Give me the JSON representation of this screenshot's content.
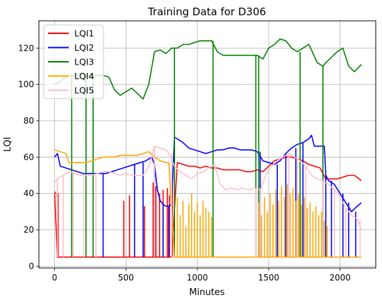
{
  "chart_data": {
    "type": "line",
    "title": "Training Data for D306",
    "xlabel": "Minutes",
    "ylabel": "LQI",
    "xlim": [
      -110,
      2250
    ],
    "ylim": [
      -1,
      135
    ],
    "xticks": [
      0,
      500,
      1000,
      1500,
      2000
    ],
    "yticks": [
      0,
      20,
      40,
      60,
      80,
      100,
      120
    ],
    "grid": true,
    "legend_position": "top-left",
    "series": [
      {
        "name": "LQI1",
        "color": "#ff0000",
        "x": [
          0,
          20,
          60,
          100,
          140,
          180,
          220,
          260,
          300,
          340,
          380,
          420,
          460,
          500,
          540,
          580,
          620,
          660,
          700,
          740,
          780,
          820,
          860,
          900,
          940,
          980,
          1020,
          1060,
          1100,
          1140,
          1180,
          1220,
          1260,
          1300,
          1340,
          1380,
          1420,
          1460,
          1500,
          1540,
          1580,
          1620,
          1660,
          1700,
          1740,
          1780,
          1820,
          1860,
          1900,
          1940,
          1980,
          2020,
          2060,
          2100,
          2150
        ],
        "y": [
          40,
          5,
          5,
          5,
          5,
          5,
          5,
          5,
          5,
          5,
          5,
          5,
          5,
          5,
          5,
          5,
          5,
          5,
          5,
          5,
          5,
          5,
          57,
          56,
          55,
          55,
          54,
          55,
          54,
          54,
          53,
          53,
          53,
          53,
          52,
          52,
          53,
          52,
          55,
          58,
          59,
          60,
          60,
          59,
          58,
          56,
          55,
          54,
          48,
          48,
          48,
          49,
          50,
          50,
          47
        ],
        "spikes": [
          {
            "x": 5,
            "y": 41
          },
          {
            "x": 12,
            "y": 40
          },
          {
            "x": 18,
            "y": 38
          },
          {
            "x": 25,
            "y": 40
          },
          {
            "x": 485,
            "y": 36
          },
          {
            "x": 525,
            "y": 39
          },
          {
            "x": 630,
            "y": 33
          },
          {
            "x": 690,
            "y": 46
          },
          {
            "x": 710,
            "y": 44
          },
          {
            "x": 735,
            "y": 40
          },
          {
            "x": 760,
            "y": 42
          },
          {
            "x": 790,
            "y": 43
          },
          {
            "x": 805,
            "y": 39
          },
          {
            "x": 825,
            "y": 44
          }
        ]
      },
      {
        "name": "LQI2",
        "color": "#0000ff",
        "x": [
          0,
          20,
          40,
          80,
          120,
          160,
          200,
          240,
          280,
          320,
          360,
          400,
          440,
          480,
          520,
          560,
          600,
          640,
          680,
          700,
          720,
          740,
          760,
          780,
          800,
          820,
          840,
          860,
          900,
          940,
          980,
          1020,
          1060,
          1100,
          1140,
          1180,
          1220,
          1260,
          1300,
          1340,
          1380,
          1420,
          1460,
          1500,
          1540,
          1580,
          1620,
          1660,
          1700,
          1740,
          1780,
          1800,
          1820,
          1860,
          1890,
          1900,
          1920,
          1960,
          2000,
          2040,
          2080,
          2120,
          2150
        ],
        "y": [
          60,
          62,
          55,
          54,
          53,
          52,
          51,
          51,
          51,
          51,
          51,
          52,
          53,
          54,
          55,
          56,
          57,
          58,
          60,
          56,
          42,
          36,
          34,
          33,
          33,
          34,
          71,
          70,
          68,
          65,
          64,
          63,
          62,
          63,
          64,
          64,
          65,
          65,
          64,
          64,
          64,
          63,
          58,
          57,
          56,
          58,
          62,
          65,
          67,
          68,
          70,
          72,
          66,
          66,
          66,
          50,
          47,
          45,
          40,
          35,
          30,
          33,
          35
        ],
        "spikes": [
          {
            "x": 340,
            "y": 5
          },
          {
            "x": 560,
            "y": 5
          },
          {
            "x": 620,
            "y": 5
          },
          {
            "x": 700,
            "y": 5
          },
          {
            "x": 760,
            "y": 5
          },
          {
            "x": 800,
            "y": 5
          },
          {
            "x": 1440,
            "y": 5
          },
          {
            "x": 1560,
            "y": 5
          },
          {
            "x": 1620,
            "y": 5
          },
          {
            "x": 1690,
            "y": 5
          },
          {
            "x": 1740,
            "y": 5
          },
          {
            "x": 1900,
            "y": 5
          },
          {
            "x": 1940,
            "y": 5
          },
          {
            "x": 2020,
            "y": 5
          },
          {
            "x": 2060,
            "y": 5
          },
          {
            "x": 2110,
            "y": 5
          }
        ]
      },
      {
        "name": "LQI3",
        "color": "#008000",
        "x": [
          0,
          30,
          60,
          100,
          140,
          180,
          220,
          260,
          300,
          340,
          380,
          420,
          460,
          500,
          540,
          580,
          620,
          660,
          700,
          740,
          780,
          820,
          860,
          900,
          940,
          980,
          1020,
          1060,
          1100,
          1140,
          1180,
          1220,
          1260,
          1300,
          1340,
          1380,
          1420,
          1460,
          1500,
          1540,
          1580,
          1620,
          1660,
          1700,
          1740,
          1780,
          1800,
          1840,
          1880,
          1900,
          1940,
          1980,
          2020,
          2060,
          2100,
          2150
        ],
        "y": [
          100,
          101,
          103,
          105,
          105,
          106,
          105,
          105,
          105,
          105,
          104,
          97,
          94,
          96,
          98,
          95,
          92,
          100,
          118,
          119,
          117,
          120,
          120,
          122,
          122,
          123,
          124,
          124,
          124,
          118,
          116,
          116,
          116,
          116,
          116,
          116,
          116,
          114,
          120,
          122,
          125,
          124,
          120,
          118,
          120,
          122,
          119,
          112,
          110,
          112,
          115,
          118,
          120,
          110,
          107,
          111
        ],
        "spikes": [
          {
            "x": 120,
            "y": 5
          },
          {
            "x": 220,
            "y": 5
          },
          {
            "x": 270,
            "y": 5
          },
          {
            "x": 840,
            "y": 5
          },
          {
            "x": 1110,
            "y": 5
          },
          {
            "x": 1410,
            "y": 5
          },
          {
            "x": 1430,
            "y": 5
          },
          {
            "x": 1720,
            "y": 5
          },
          {
            "x": 1880,
            "y": 5
          }
        ]
      },
      {
        "name": "LQI4",
        "color": "#ffa500",
        "x": [
          0,
          40,
          80,
          100,
          140,
          180,
          220,
          260,
          300,
          340,
          380,
          420,
          460,
          500,
          540,
          580,
          620,
          660,
          700,
          740,
          780,
          800,
          840,
          880,
          920,
          960,
          1000,
          1040,
          1080,
          1120,
          1160,
          1200,
          1240,
          1280,
          1320,
          1360,
          1400,
          1440,
          1480,
          1520,
          1560,
          1600,
          1640,
          1680,
          1720,
          1760,
          1800,
          1840,
          1880,
          1920,
          1960,
          2000,
          2040,
          2080,
          2120,
          2150
        ],
        "y": [
          64,
          63,
          62,
          57,
          57,
          57,
          57,
          58,
          59,
          60,
          60,
          60,
          61,
          61,
          61,
          61,
          62,
          63,
          60,
          58,
          57,
          57,
          5,
          5,
          5,
          5,
          5,
          5,
          5,
          5,
          5,
          5,
          5,
          5,
          5,
          5,
          5,
          5,
          5,
          5,
          5,
          5,
          5,
          5,
          5,
          5,
          5,
          5,
          5,
          5,
          5,
          5,
          5,
          5,
          5,
          5
        ],
        "spikes": [
          {
            "x": 860,
            "y": 38
          },
          {
            "x": 880,
            "y": 28
          },
          {
            "x": 900,
            "y": 36
          },
          {
            "x": 920,
            "y": 22
          },
          {
            "x": 940,
            "y": 34
          },
          {
            "x": 960,
            "y": 40
          },
          {
            "x": 980,
            "y": 30
          },
          {
            "x": 1000,
            "y": 35
          },
          {
            "x": 1020,
            "y": 28
          },
          {
            "x": 1040,
            "y": 36
          },
          {
            "x": 1060,
            "y": 32
          },
          {
            "x": 1080,
            "y": 30
          },
          {
            "x": 1100,
            "y": 27
          },
          {
            "x": 1430,
            "y": 35
          },
          {
            "x": 1450,
            "y": 28
          },
          {
            "x": 1470,
            "y": 38
          },
          {
            "x": 1490,
            "y": 30
          },
          {
            "x": 1510,
            "y": 40
          },
          {
            "x": 1530,
            "y": 34
          },
          {
            "x": 1550,
            "y": 42
          },
          {
            "x": 1570,
            "y": 36
          },
          {
            "x": 1590,
            "y": 44
          },
          {
            "x": 1610,
            "y": 38
          },
          {
            "x": 1630,
            "y": 45
          },
          {
            "x": 1650,
            "y": 40
          },
          {
            "x": 1670,
            "y": 43
          },
          {
            "x": 1690,
            "y": 36
          },
          {
            "x": 1710,
            "y": 40
          },
          {
            "x": 1730,
            "y": 34
          },
          {
            "x": 1750,
            "y": 38
          },
          {
            "x": 1770,
            "y": 32
          },
          {
            "x": 1790,
            "y": 35
          },
          {
            "x": 1810,
            "y": 30
          },
          {
            "x": 1830,
            "y": 33
          },
          {
            "x": 1850,
            "y": 28
          },
          {
            "x": 1870,
            "y": 30
          },
          {
            "x": 1890,
            "y": 25
          },
          {
            "x": 1910,
            "y": 22
          }
        ]
      },
      {
        "name": "LQI5",
        "color": "#ffc0cb",
        "x": [
          0,
          20,
          60,
          100,
          140,
          180,
          220,
          260,
          300,
          340,
          380,
          420,
          460,
          500,
          540,
          580,
          620,
          660,
          700,
          740,
          780,
          800,
          840,
          880,
          920,
          960,
          1000,
          1040,
          1080,
          1120,
          1160,
          1200,
          1240,
          1280,
          1320,
          1360,
          1400,
          1440,
          1480,
          1520,
          1560,
          1600,
          1640,
          1680,
          1720,
          1760,
          1800,
          1840,
          1880,
          1920,
          1960,
          2000,
          2040,
          2080,
          2120,
          2150
        ],
        "y": [
          46,
          48,
          50,
          52,
          51,
          50,
          50,
          50,
          51,
          52,
          52,
          51,
          50,
          51,
          50,
          50,
          50,
          55,
          66,
          65,
          64,
          62,
          55,
          52,
          50,
          48,
          51,
          52,
          54,
          56,
          45,
          42,
          43,
          42,
          43,
          42,
          43,
          42,
          50,
          55,
          58,
          60,
          62,
          60,
          58,
          55,
          50,
          48,
          47,
          45,
          42,
          38,
          32,
          28,
          26,
          20
        ],
        "spikes": [
          {
            "x": 20,
            "y": 5
          },
          {
            "x": 60,
            "y": 5
          },
          {
            "x": 130,
            "y": 5
          },
          {
            "x": 205,
            "y": 5
          },
          {
            "x": 290,
            "y": 5
          },
          {
            "x": 700,
            "y": 5
          },
          {
            "x": 820,
            "y": 5
          },
          {
            "x": 1410,
            "y": 5
          },
          {
            "x": 1440,
            "y": 5
          },
          {
            "x": 1640,
            "y": 5
          },
          {
            "x": 1700,
            "y": 5
          },
          {
            "x": 1760,
            "y": 5
          },
          {
            "x": 1880,
            "y": 5
          },
          {
            "x": 1960,
            "y": 5
          },
          {
            "x": 2040,
            "y": 5
          },
          {
            "x": 2140,
            "y": 5
          }
        ]
      }
    ]
  }
}
